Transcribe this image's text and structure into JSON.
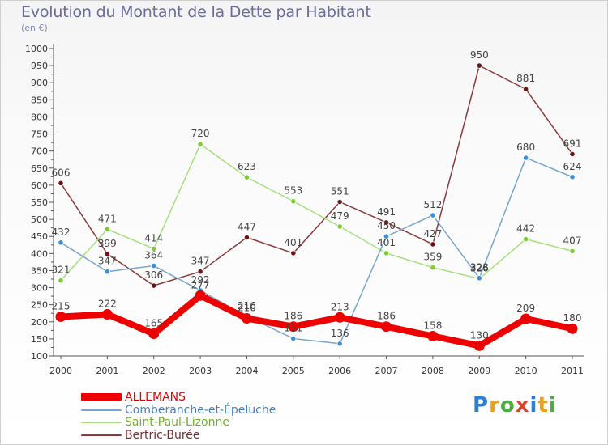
{
  "title": "Evolution du Montant de la Dette par Habitant",
  "subtitle": "(en €)",
  "logo": {
    "text": "Proxiti",
    "letter_colors": [
      "#2f7fd1",
      "#e8a020",
      "#4cae3c",
      "#d8452e",
      "#2f7fd1",
      "#e8a020",
      "#4cae3c"
    ]
  },
  "chart_data": {
    "type": "line",
    "x": [
      "2000",
      "2001",
      "2002",
      "2003",
      "2004",
      "2005",
      "2006",
      "2007",
      "2008",
      "2009",
      "2010",
      "2011"
    ],
    "ylim": [
      100,
      1000
    ],
    "yticks": [
      "100",
      "150",
      "200",
      "250",
      "300",
      "350",
      "400",
      "450",
      "500",
      "550",
      "600",
      "650",
      "700",
      "750",
      "800",
      "850",
      "900",
      "950",
      "1000"
    ],
    "grid": false,
    "legend_position": "bottom-left",
    "series": [
      {
        "name": "ALLEMANS",
        "color": "#ee0000",
        "point_color": "#ee0000",
        "values": [
          215,
          222,
          165,
          277,
          210,
          186,
          213,
          186,
          158,
          130,
          209,
          180
        ],
        "labels": [
          "215",
          "222",
          "165",
          "277",
          "210",
          "186",
          "213",
          "186",
          "158",
          "130",
          "209",
          "180"
        ]
      },
      {
        "name": "Comberanche-et-Épeluche",
        "color": "#79a5ce",
        "point_color": "#3d8fd6",
        "values": [
          432,
          347,
          364,
          292,
          216,
          151,
          136,
          450,
          512,
          328,
          680,
          624
        ],
        "labels": [
          "432",
          "347",
          "364",
          "292",
          "216",
          "151",
          "136",
          "450",
          "512",
          "328",
          "680",
          "624"
        ]
      },
      {
        "name": "Saint-Paul-Lizonne",
        "color": "#a6e07e",
        "point_color": "#7ecb3a",
        "values": [
          321,
          471,
          414,
          720,
          623,
          553,
          479,
          401,
          359,
          326,
          442,
          407
        ],
        "labels": [
          "321",
          "471",
          "414",
          "720",
          "623",
          "553",
          "479",
          "401",
          "359",
          "326",
          "442",
          "407"
        ]
      },
      {
        "name": "Bertric-Burée",
        "color": "#8a3a3a",
        "point_color": "#6b1616",
        "values": [
          606,
          399,
          306,
          347,
          447,
          401,
          551,
          491,
          427,
          950,
          881,
          691
        ],
        "labels": [
          "606",
          "399",
          "306",
          "347",
          "447",
          "401",
          "551",
          "491",
          "427",
          "950",
          "881",
          "691"
        ]
      }
    ]
  }
}
